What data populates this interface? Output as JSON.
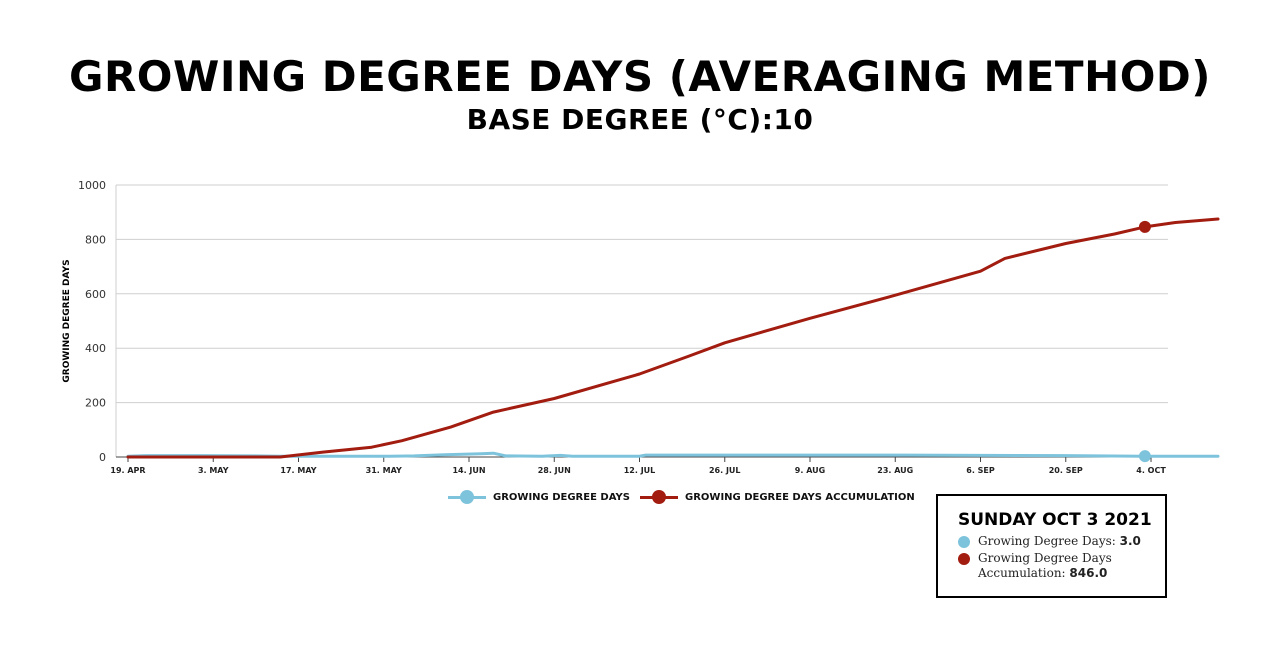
{
  "title": "GROWING DEGREE DAYS (AVERAGING METHOD)",
  "subtitle": "BASE DEGREE (°C):10",
  "colors": {
    "gdd": "#7ec3dc",
    "accumulation": "#a21c10",
    "grid": "#cfcfcf",
    "axis": "#444444"
  },
  "chart_data": {
    "type": "line",
    "ylabel": "GROWING DEGREE DAYS",
    "xlabel": "",
    "ylim": [
      0,
      1000
    ],
    "yticks": [
      0,
      200,
      400,
      600,
      800,
      1000
    ],
    "x_start": "2021-04-19",
    "x_end": "2021-10-15",
    "xticks": [
      {
        "date": "2021-04-19",
        "label": "19. APR"
      },
      {
        "date": "2021-05-03",
        "label": "3. MAY"
      },
      {
        "date": "2021-05-17",
        "label": "17. MAY"
      },
      {
        "date": "2021-05-31",
        "label": "31. MAY"
      },
      {
        "date": "2021-06-14",
        "label": "14. JUN"
      },
      {
        "date": "2021-06-28",
        "label": "28. JUN"
      },
      {
        "date": "2021-07-12",
        "label": "12. JUL"
      },
      {
        "date": "2021-07-26",
        "label": "26. JUL"
      },
      {
        "date": "2021-08-09",
        "label": "9. AUG"
      },
      {
        "date": "2021-08-23",
        "label": "23. AUG"
      },
      {
        "date": "2021-09-06",
        "label": "6. SEP"
      },
      {
        "date": "2021-09-20",
        "label": "20. SEP"
      },
      {
        "date": "2021-10-04",
        "label": "4. OCT"
      }
    ],
    "grid": true,
    "legend_position": "bottom-center",
    "series": [
      {
        "name": "GROWING DEGREE DAYS",
        "color": "#7ec3dc",
        "points": [
          [
            "2021-04-19",
            3
          ],
          [
            "2021-04-22",
            5
          ],
          [
            "2021-05-01",
            5
          ],
          [
            "2021-05-10",
            4
          ],
          [
            "2021-05-14",
            3
          ],
          [
            "2021-05-20",
            3
          ],
          [
            "2021-06-01",
            3
          ],
          [
            "2021-06-05",
            4
          ],
          [
            "2021-06-10",
            8
          ],
          [
            "2021-06-16",
            12
          ],
          [
            "2021-06-18",
            14
          ],
          [
            "2021-06-20",
            4
          ],
          [
            "2021-06-26",
            3
          ],
          [
            "2021-06-29",
            6
          ],
          [
            "2021-07-01",
            3
          ],
          [
            "2021-07-12",
            3
          ],
          [
            "2021-07-13",
            7
          ],
          [
            "2021-08-01",
            7
          ],
          [
            "2021-08-25",
            7
          ],
          [
            "2021-09-20",
            5
          ],
          [
            "2021-10-03",
            3
          ],
          [
            "2021-10-15",
            3
          ]
        ],
        "marker": {
          "date": "2021-10-03",
          "value": 3
        }
      },
      {
        "name": "GROWING DEGREE DAYS ACCUMULATION",
        "color": "#a21c10",
        "points": [
          [
            "2021-04-19",
            0
          ],
          [
            "2021-05-14",
            0
          ],
          [
            "2021-05-21",
            18
          ],
          [
            "2021-05-29",
            36
          ],
          [
            "2021-06-03",
            60
          ],
          [
            "2021-06-11",
            110
          ],
          [
            "2021-06-18",
            165
          ],
          [
            "2021-06-28",
            215
          ],
          [
            "2021-07-12",
            305
          ],
          [
            "2021-07-20",
            370
          ],
          [
            "2021-07-26",
            420
          ],
          [
            "2021-08-09",
            510
          ],
          [
            "2021-08-23",
            595
          ],
          [
            "2021-09-06",
            683
          ],
          [
            "2021-09-10",
            730
          ],
          [
            "2021-09-20",
            785
          ],
          [
            "2021-09-28",
            820
          ],
          [
            "2021-10-03",
            846
          ],
          [
            "2021-10-08",
            862
          ],
          [
            "2021-10-15",
            875
          ]
        ],
        "marker": {
          "date": "2021-10-03",
          "value": 846
        }
      }
    ]
  },
  "tooltip": {
    "date": "SUNDAY OCT 3 2021",
    "rows": [
      {
        "label": "Growing Degree Days: ",
        "value": "3.0",
        "color": "#7ec3dc"
      },
      {
        "label_line1": "Growing Degree Days",
        "label_line2": "Accumulation: ",
        "value": "846.0",
        "color": "#a21c10"
      }
    ]
  }
}
